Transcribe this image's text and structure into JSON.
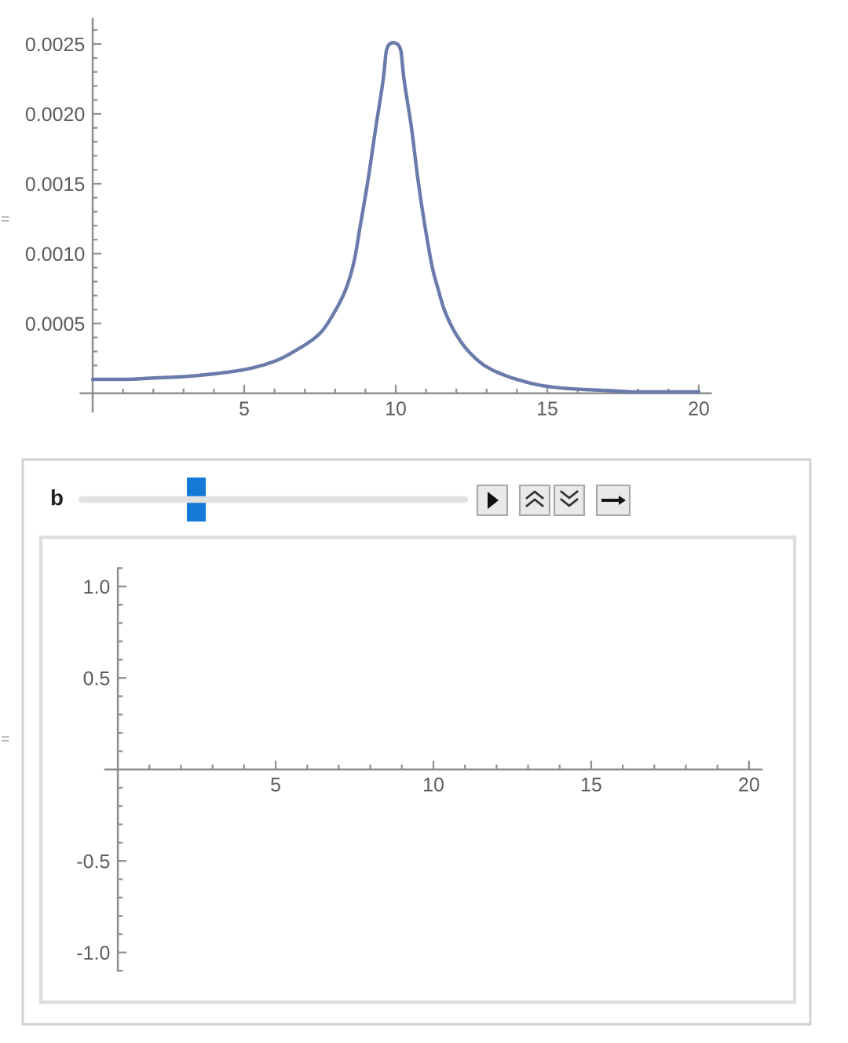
{
  "chart_data": [
    {
      "type": "line",
      "x": [
        0,
        1,
        2,
        3,
        4,
        5,
        6,
        6.8,
        7.5,
        8,
        8.36,
        8.62,
        8.83,
        9.08,
        9.34,
        9.6,
        9.7,
        9.8,
        9.91,
        10.05,
        10.16,
        10.26,
        10.52,
        10.74,
        11,
        11.24,
        11.38,
        11.6,
        12,
        12.45,
        13,
        14,
        15,
        16,
        17,
        18,
        19,
        20
      ],
      "series": [
        {
          "color": "#6a7bab",
          "values": [
            0.0001,
            0.0001,
            0.00011,
            0.00012,
            0.00014,
            0.00017,
            0.00023,
            0.00032,
            0.00043,
            0.00059,
            0.00075,
            0.00094,
            0.0012,
            0.00152,
            0.0019,
            0.00227,
            0.00246,
            0.0025,
            0.00251,
            0.0025,
            0.00246,
            0.00227,
            0.0019,
            0.00152,
            0.00115,
            0.00087,
            0.00076,
            0.0006,
            0.00042,
            0.00029,
            0.00019,
            0.0001,
            5e-05,
            3e-05,
            2e-05,
            1e-05,
            1e-05,
            1e-05
          ]
        }
      ],
      "xlim": [
        -0.4,
        20.4
      ],
      "ylim": [
        -0.00013,
        0.00268
      ],
      "xticks": [
        {
          "value": 1,
          "label": null
        },
        {
          "value": 2,
          "label": null
        },
        {
          "value": 3,
          "label": null
        },
        {
          "value": 4,
          "label": null
        },
        5,
        {
          "value": 6,
          "label": null
        },
        {
          "value": 7,
          "label": null
        },
        {
          "value": 8,
          "label": null
        },
        {
          "value": 9,
          "label": null
        },
        10,
        {
          "value": 11,
          "label": null
        },
        {
          "value": 12,
          "label": null
        },
        {
          "value": 13,
          "label": null
        },
        {
          "value": 14,
          "label": null
        },
        15,
        {
          "value": 16,
          "label": null
        },
        {
          "value": 17,
          "label": null
        },
        {
          "value": 18,
          "label": null
        },
        {
          "value": 19,
          "label": null
        },
        20
      ],
      "yticks": [
        {
          "value": 0.0001,
          "label": null
        },
        {
          "value": 0.0002,
          "label": null
        },
        {
          "value": 0.0003,
          "label": null
        },
        {
          "value": 0.0004,
          "label": null
        },
        0.0005,
        {
          "value": 0.0006,
          "label": null
        },
        {
          "value": 0.0007,
          "label": null
        },
        {
          "value": 0.0008,
          "label": null
        },
        {
          "value": 0.0009,
          "label": null
        },
        {
          "value": 0.001,
          "label": "0.0010"
        },
        {
          "value": 0.0011,
          "label": null
        },
        {
          "value": 0.0012,
          "label": null
        },
        {
          "value": 0.0013,
          "label": null
        },
        {
          "value": 0.0014,
          "label": null
        },
        0.0015,
        {
          "value": 0.0016,
          "label": null
        },
        {
          "value": 0.0017,
          "label": null
        },
        {
          "value": 0.0018,
          "label": null
        },
        {
          "value": 0.0019,
          "label": null
        },
        {
          "value": 0.002,
          "label": "0.0020"
        },
        {
          "value": 0.0021,
          "label": null
        },
        {
          "value": 0.0022,
          "label": null
        },
        {
          "value": 0.0023,
          "label": null
        },
        {
          "value": 0.0024,
          "label": null
        },
        0.0025,
        {
          "value": 0.0026,
          "label": null
        }
      ],
      "annotations": [
        "="
      ]
    },
    {
      "type": "line",
      "xlim": [
        -0.4,
        20.4
      ],
      "ylim": [
        -1.1,
        1.1
      ],
      "xticks": [
        {
          "value": 1,
          "label": null
        },
        {
          "value": 2,
          "label": null
        },
        {
          "value": 3,
          "label": null
        },
        {
          "value": 4,
          "label": null
        },
        5,
        {
          "value": 6,
          "label": null
        },
        {
          "value": 7,
          "label": null
        },
        {
          "value": 8,
          "label": null
        },
        {
          "value": 9,
          "label": null
        },
        10,
        {
          "value": 11,
          "label": null
        },
        {
          "value": 12,
          "label": null
        },
        {
          "value": 13,
          "label": null
        },
        {
          "value": 14,
          "label": null
        },
        15,
        {
          "value": 16,
          "label": null
        },
        {
          "value": 17,
          "label": null
        },
        {
          "value": 18,
          "label": null
        },
        {
          "value": 19,
          "label": null
        },
        20
      ],
      "yticks": [
        {
          "value": -1.1,
          "label": null
        },
        {
          "value": -1.0,
          "label": "-1.0"
        },
        {
          "value": -0.9,
          "label": null
        },
        {
          "value": -0.8,
          "label": null
        },
        {
          "value": -0.7,
          "label": null
        },
        {
          "value": -0.6,
          "label": null
        },
        -0.5,
        {
          "value": -0.4,
          "label": null
        },
        {
          "value": -0.3,
          "label": null
        },
        {
          "value": -0.2,
          "label": null
        },
        {
          "value": -0.1,
          "label": null
        },
        {
          "value": 0.1,
          "label": null
        },
        {
          "value": 0.2,
          "label": null
        },
        {
          "value": 0.3,
          "label": null
        },
        {
          "value": 0.4,
          "label": null
        },
        0.5,
        {
          "value": 0.6,
          "label": null
        },
        {
          "value": 0.7,
          "label": null
        },
        {
          "value": 0.8,
          "label": null
        },
        {
          "value": 0.9,
          "label": null
        },
        {
          "value": 1.0,
          "label": "1.0"
        },
        {
          "value": 1.1,
          "label": null
        }
      ],
      "annotations": [
        "b",
        "="
      ]
    }
  ]
}
